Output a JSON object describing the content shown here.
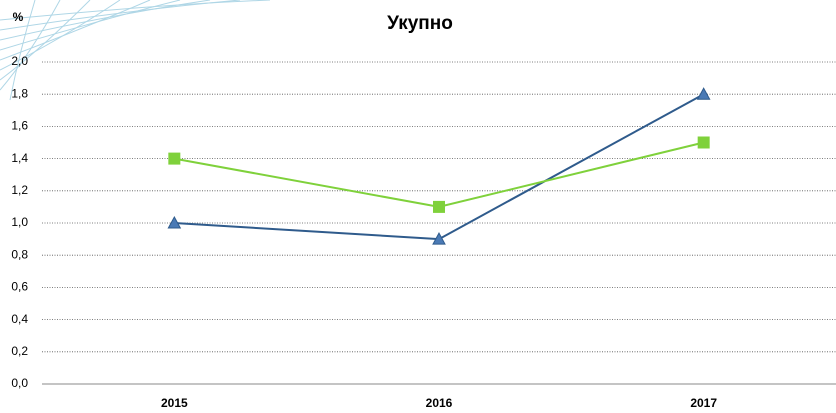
{
  "chart_data": {
    "type": "line",
    "title": "Укупно",
    "y_label": "%",
    "categories": [
      "2015",
      "2016",
      "2017"
    ],
    "series": [
      {
        "color": "#2f5b8c",
        "marker": "triangle",
        "values": [
          1.0,
          0.9,
          1.8
        ]
      },
      {
        "color": "#7fd13b",
        "marker": "square",
        "values": [
          1.4,
          1.1,
          1.5
        ]
      }
    ],
    "ylim": [
      0,
      2
    ],
    "yticks": [
      {
        "value": 0,
        "label": "0,0"
      },
      {
        "value": 0.2,
        "label": "0,2"
      },
      {
        "value": 0.4,
        "label": "0,4"
      },
      {
        "value": 0.6,
        "label": "0,6"
      },
      {
        "value": 0.8,
        "label": "0,8"
      },
      {
        "value": 1.0,
        "label": "1,0"
      },
      {
        "value": 1.2,
        "label": "1,2"
      },
      {
        "value": 1.4,
        "label": "1,4"
      },
      {
        "value": 1.6,
        "label": "1,6"
      },
      {
        "value": 1.8,
        "label": "1,8"
      },
      {
        "value": 2.0,
        "label": "2,0"
      }
    ],
    "grid": true
  }
}
